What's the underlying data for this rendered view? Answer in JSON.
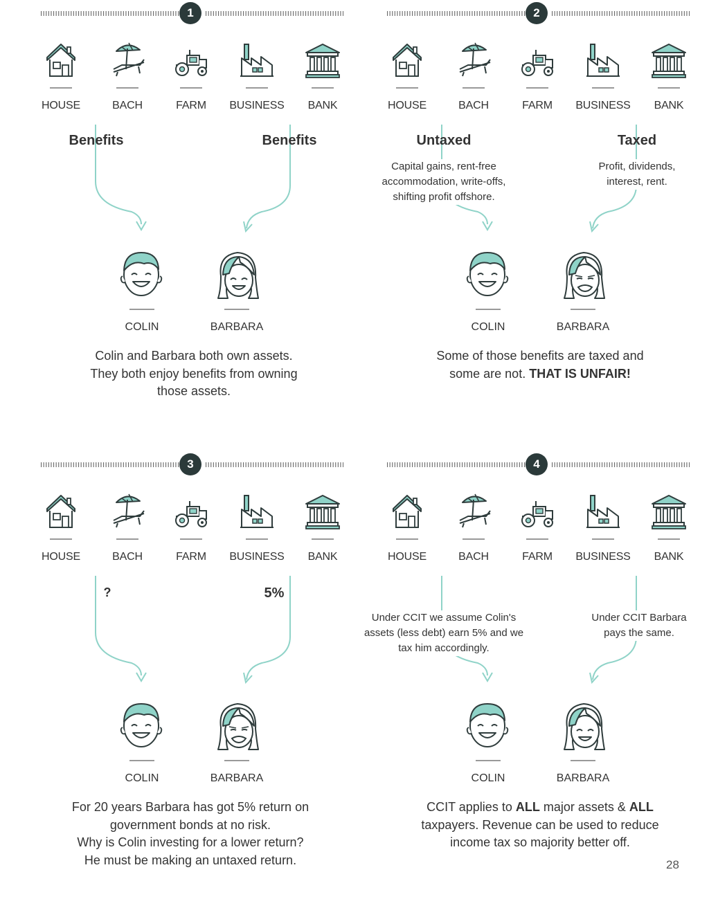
{
  "assets": [
    "HOUSE",
    "BACH",
    "FARM",
    "BUSINESS",
    "BANK"
  ],
  "people": [
    "COLIN",
    "BARBARA"
  ],
  "accent_color": "#8fd3c8",
  "line_color": "#2f3c3c",
  "panels": [
    {
      "number": "1",
      "left_heading": "Benefits",
      "right_heading": "Benefits",
      "left_desc": "",
      "right_desc": "",
      "barbara_expression": "happy",
      "caption": [
        "Colin and Barbara both own assets.",
        "They both enjoy benefits from owning",
        "those assets."
      ]
    },
    {
      "number": "2",
      "left_heading": "Untaxed",
      "right_heading": "Taxed",
      "left_desc": [
        "Capital gains, rent-free",
        "accommodation, write-offs,",
        "shifting profit offshore."
      ],
      "right_desc": [
        "Profit, dividends,",
        "interest, rent."
      ],
      "barbara_expression": "upset",
      "caption_parts": [
        "Some of those benefits are taxed and",
        "some are not. ",
        "THAT IS UNFAIR!"
      ]
    },
    {
      "number": "3",
      "left_heading": "?",
      "right_heading": "5%",
      "barbara_expression": "upset",
      "caption": [
        "For 20 years Barbara has got 5% return on",
        "government bonds at no risk.",
        "Why is Colin investing for a lower return?",
        "He must be making an untaxed return."
      ]
    },
    {
      "number": "4",
      "left_desc": [
        "Under CCIT we assume Colin's",
        "assets (less debt) earn 5% and we",
        "tax him accordingly."
      ],
      "right_desc": [
        "Under CCIT Barbara",
        "pays the same."
      ],
      "barbara_expression": "happy",
      "caption_parts": [
        "CCIT applies to ",
        "ALL",
        " major assets & ",
        "ALL",
        " taxpayers. Revenue can be used to reduce",
        "income tax so majority better off."
      ]
    }
  ],
  "page_number": "28"
}
